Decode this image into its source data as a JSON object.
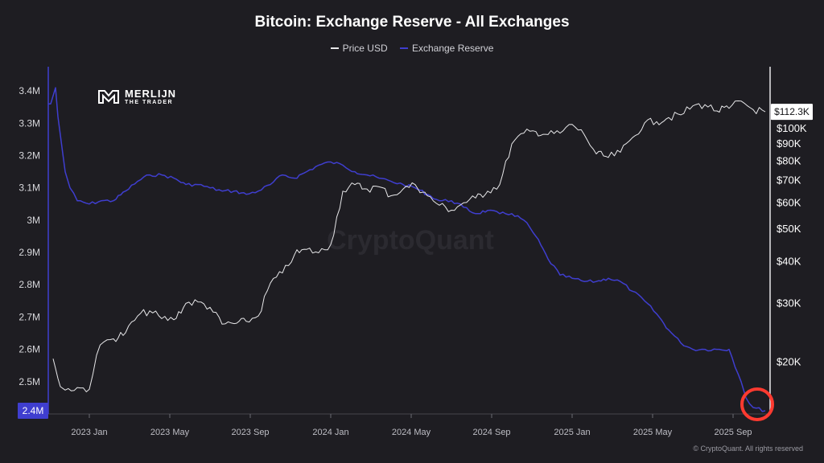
{
  "chart_data": {
    "type": "line",
    "title": "Bitcoin: Exchange Reserve - All Exchanges",
    "watermark": "CryptoQuant",
    "logo": {
      "line1": "MERLIJN",
      "line2": "THE TRADER"
    },
    "copyright": "© CryptoQuant. All rights reserved",
    "x_ticks": [
      "2023 Jan",
      "2023 May",
      "2023 Sep",
      "2024 Jan",
      "2024 May",
      "2024 Sep",
      "2025 Jan",
      "2025 May",
      "2025 Sep"
    ],
    "x_range": [
      2022.83,
      2025.82
    ],
    "x_tick_positions": [
      2023.0,
      2023.3333,
      2023.6667,
      2024.0,
      2024.3333,
      2024.6667,
      2025.0,
      2025.3333,
      2025.6667
    ],
    "left_axis": {
      "label": "Exchange Reserve",
      "range": [
        2.4,
        3.45
      ],
      "ticks": [
        2.4,
        2.5,
        2.6,
        2.7,
        2.8,
        2.9,
        3.0,
        3.1,
        3.2,
        3.3,
        3.4
      ],
      "tick_labels": [
        "2.4M",
        "2.5M",
        "2.6M",
        "2.7M",
        "2.8M",
        "2.9M",
        "3M",
        "3.1M",
        "3.2M",
        "3.3M",
        "3.4M"
      ],
      "current_label": "2.4M",
      "current_value": 2.41
    },
    "right_axis": {
      "label": "Price USD",
      "scale": "log",
      "range": [
        14000,
        145000
      ],
      "ticks": [
        20000,
        30000,
        40000,
        50000,
        60000,
        70000,
        80000,
        90000,
        100000
      ],
      "tick_labels": [
        "$20K",
        "$30K",
        "$40K",
        "$50K",
        "$60K",
        "$70K",
        "$80K",
        "$90K",
        "$100K"
      ],
      "current_label": "$112.3K",
      "current_value": 112300
    },
    "series": [
      {
        "name": "Price USD",
        "color": "#e8e8ea",
        "axis": "right",
        "x": [
          2022.85,
          2022.88,
          2022.9,
          2022.95,
          2023.0,
          2023.03,
          2023.06,
          2023.1,
          2023.15,
          2023.2,
          2023.25,
          2023.3,
          2023.35,
          2023.4,
          2023.45,
          2023.5,
          2023.55,
          2023.6,
          2023.65,
          2023.7,
          2023.75,
          2023.8,
          2023.85,
          2023.9,
          2023.95,
          2024.0,
          2024.05,
          2024.1,
          2024.15,
          2024.2,
          2024.25,
          2024.3,
          2024.35,
          2024.4,
          2024.45,
          2024.5,
          2024.55,
          2024.6,
          2024.65,
          2024.7,
          2024.75,
          2024.8,
          2024.85,
          2024.9,
          2024.95,
          2025.0,
          2025.05,
          2025.1,
          2025.15,
          2025.2,
          2025.25,
          2025.3,
          2025.35,
          2025.4,
          2025.45,
          2025.5,
          2025.55,
          2025.6,
          2025.65,
          2025.7,
          2025.75,
          2025.8
        ],
        "values": [
          20500,
          16900,
          16500,
          16800,
          16600,
          21000,
          23000,
          23500,
          24500,
          27500,
          28500,
          27000,
          26800,
          30000,
          30300,
          29200,
          26000,
          26100,
          26500,
          27500,
          34500,
          37000,
          42000,
          43500,
          42500,
          45000,
          65000,
          68000,
          66000,
          67000,
          63000,
          66000,
          68000,
          63000,
          59000,
          57000,
          60000,
          62000,
          65000,
          68000,
          90000,
          97000,
          98000,
          96000,
          97000,
          103000,
          96000,
          84000,
          82000,
          85000,
          94000,
          104000,
          105000,
          108000,
          110000,
          117000,
          118000,
          113000,
          115000,
          121000,
          114000,
          112300
        ]
      },
      {
        "name": "Exchange Reserve",
        "color": "#3f3ecf",
        "axis": "left",
        "x": [
          2022.83,
          2022.84,
          2022.86,
          2022.87,
          2022.9,
          2022.92,
          2022.95,
          2023.0,
          2023.05,
          2023.1,
          2023.15,
          2023.2,
          2023.25,
          2023.3,
          2023.35,
          2023.4,
          2023.45,
          2023.5,
          2023.55,
          2023.6,
          2023.65,
          2023.7,
          2023.75,
          2023.8,
          2023.85,
          2023.9,
          2023.95,
          2024.0,
          2024.05,
          2024.1,
          2024.15,
          2024.2,
          2024.25,
          2024.3,
          2024.35,
          2024.4,
          2024.45,
          2024.5,
          2024.55,
          2024.6,
          2024.65,
          2024.7,
          2024.75,
          2024.8,
          2024.85,
          2024.9,
          2024.95,
          2025.0,
          2025.05,
          2025.1,
          2025.15,
          2025.2,
          2025.25,
          2025.3,
          2025.35,
          2025.4,
          2025.45,
          2025.5,
          2025.55,
          2025.6,
          2025.65,
          2025.7,
          2025.72,
          2025.75,
          2025.8
        ],
        "values": [
          3.36,
          3.36,
          3.41,
          3.32,
          3.15,
          3.1,
          3.06,
          3.05,
          3.06,
          3.06,
          3.09,
          3.12,
          3.14,
          3.14,
          3.13,
          3.11,
          3.11,
          3.1,
          3.09,
          3.09,
          3.08,
          3.09,
          3.11,
          3.14,
          3.13,
          3.15,
          3.17,
          3.18,
          3.17,
          3.15,
          3.14,
          3.13,
          3.12,
          3.11,
          3.1,
          3.08,
          3.06,
          3.06,
          3.04,
          3.02,
          3.03,
          3.02,
          3.02,
          3.0,
          2.95,
          2.88,
          2.83,
          2.82,
          2.81,
          2.81,
          2.82,
          2.81,
          2.78,
          2.75,
          2.71,
          2.66,
          2.62,
          2.6,
          2.6,
          2.6,
          2.6,
          2.5,
          2.45,
          2.42,
          2.41
        ]
      }
    ]
  }
}
